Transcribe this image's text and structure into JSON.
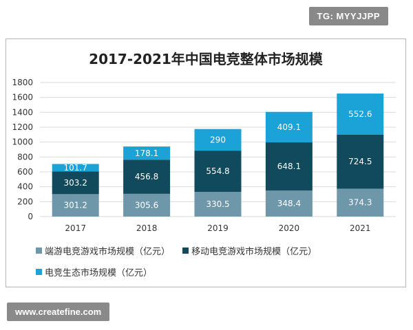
{
  "watermark_top": "TG: MYYJJPP",
  "watermark_bottom": "www.createfine.com",
  "colors": {
    "client_game": "#6f97aa",
    "mobile_game": "#114a5d",
    "ecosystem": "#1ba3d8"
  },
  "chart_data": {
    "type": "bar",
    "stacked": true,
    "title": "2017-2021年中国电竞整体市场规模",
    "categories": [
      "2017",
      "2018",
      "2019",
      "2020",
      "2021"
    ],
    "series": [
      {
        "name": "端游电竞游戏市场规模（亿元）",
        "values": [
          301.2,
          305.6,
          330.5,
          348.4,
          374.3
        ]
      },
      {
        "name": "移动电竞游戏市场规模（亿元）",
        "values": [
          303.2,
          456.8,
          554.8,
          648.1,
          724.5
        ]
      },
      {
        "name": "电竞生态市场规模（亿元）",
        "values": [
          101.7,
          178.1,
          290,
          409.1,
          552.6
        ]
      }
    ],
    "value_labels": [
      [
        "301.2",
        "305.6",
        "330.5",
        "348.4",
        "374.3"
      ],
      [
        "303.2",
        "456.8",
        "554.8",
        "648.1",
        "724.5"
      ],
      [
        "101.7",
        "178.1",
        "290",
        "409.1",
        "552.6"
      ]
    ],
    "yticks": [
      "0",
      "200",
      "400",
      "600",
      "800",
      "1000",
      "1200",
      "1400",
      "1600",
      "1800"
    ],
    "ylim": [
      0,
      1800
    ],
    "grid": true,
    "legend": "bottom"
  }
}
